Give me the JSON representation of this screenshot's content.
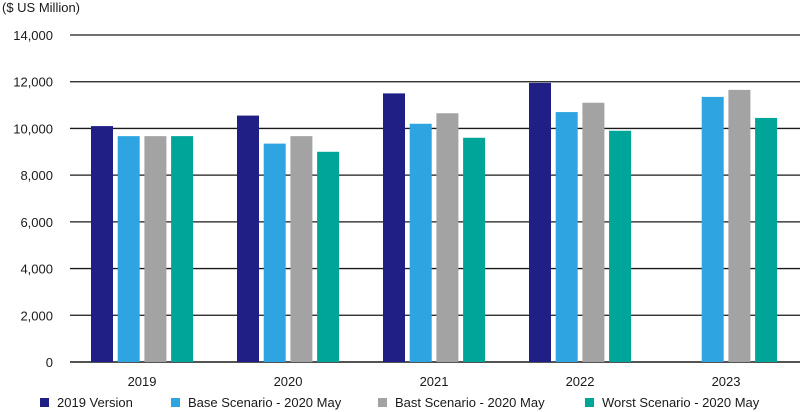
{
  "chart_data": {
    "type": "bar",
    "title": "",
    "unit_label": "($ US Million)",
    "xlabel": "",
    "ylabel": "",
    "categories": [
      "2019",
      "2020",
      "2021",
      "2022",
      "2023"
    ],
    "ylim": [
      0,
      14000
    ],
    "yticks": [
      0,
      2000,
      4000,
      6000,
      8000,
      10000,
      12000,
      14000
    ],
    "ytick_labels": [
      "0",
      "2,000",
      "4,000",
      "6,000",
      "8,000",
      "10,000",
      "12,000",
      "14,000"
    ],
    "grid": "horizontal",
    "legend_position": "bottom",
    "series": [
      {
        "name": "2019 Version",
        "color": "#1f1f86",
        "values": [
          10100,
          10550,
          11500,
          11950,
          null
        ]
      },
      {
        "name": "Base Scenario - 2020 May",
        "color": "#2ea5e0",
        "values": [
          9670,
          9350,
          10200,
          10700,
          11350
        ]
      },
      {
        "name": "Bast Scenario - 2020 May",
        "color": "#a3a3a3",
        "values": [
          9670,
          9670,
          10650,
          11100,
          11650
        ]
      },
      {
        "name": "Worst Scenario - 2020 May",
        "color": "#00a599",
        "values": [
          9670,
          9000,
          9600,
          9900,
          10450
        ]
      }
    ]
  }
}
